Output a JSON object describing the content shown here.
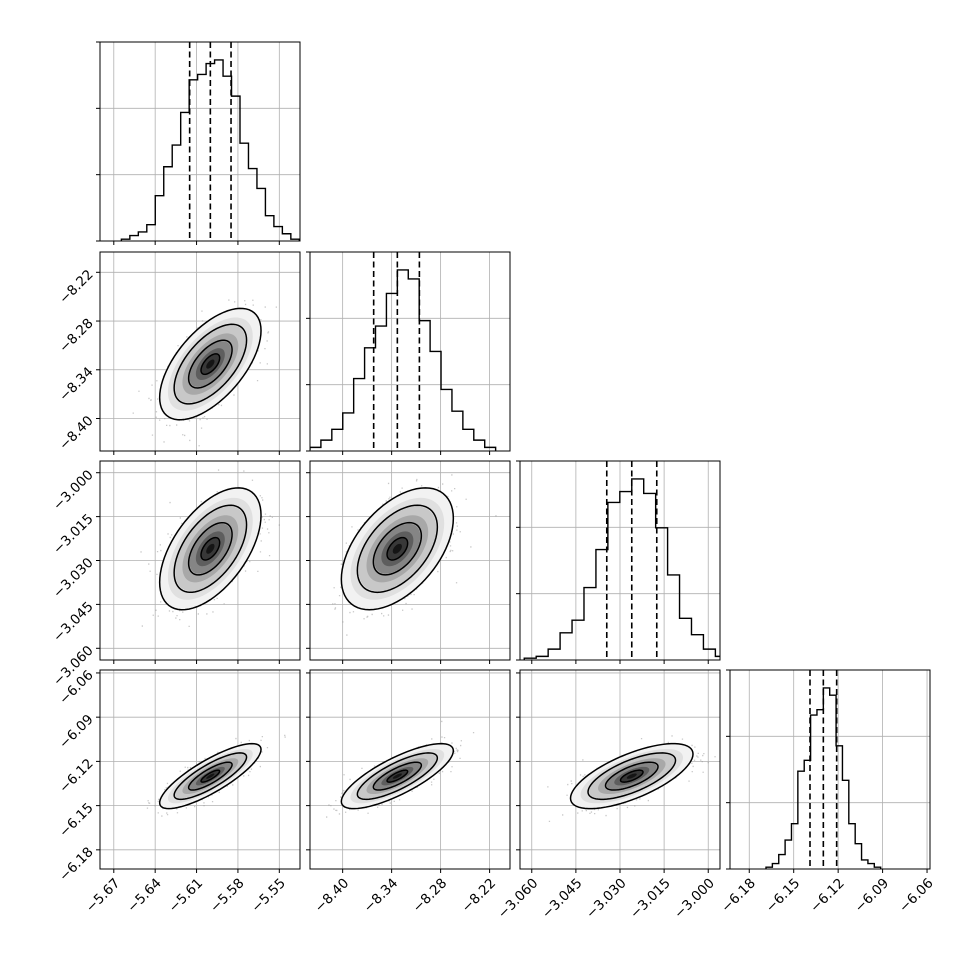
{
  "chart_data": {
    "type": "corner",
    "title": "",
    "grid": true,
    "quantiles_note": "dashed lines mark 16th / 50th / 84th percentiles",
    "parameters": [
      {
        "index": 0,
        "median": -5.6,
        "q16": -5.615,
        "q84": -5.585,
        "sigma": 0.015,
        "range": [
          -5.68,
          -5.535
        ],
        "ticks": [
          -5.67,
          -5.64,
          -5.61,
          -5.58,
          -5.55
        ],
        "tick_labels": [
          "−5.67",
          "−5.64",
          "−5.61",
          "−5.58",
          "−5.55"
        ],
        "histogram": [
          0.01,
          0.03,
          0.05,
          0.09,
          0.25,
          0.41,
          0.53,
          0.71,
          0.89,
          0.92,
          0.98,
          1.0,
          0.91,
          0.8,
          0.54,
          0.4,
          0.29,
          0.14,
          0.08,
          0.04,
          0.01
        ]
      },
      {
        "index": 1,
        "median": -8.333,
        "q16": -8.362,
        "q84": -8.306,
        "sigma": 0.028,
        "range": [
          -8.44,
          -8.195
        ],
        "ticks": [
          -8.4,
          -8.34,
          -8.28,
          -8.22
        ],
        "tick_labels": [
          "−8.40",
          "−8.34",
          "−8.28",
          "−8.22"
        ],
        "histogram": [
          0.01,
          0.02,
          0.06,
          0.12,
          0.21,
          0.4,
          0.57,
          0.69,
          0.87,
          1.0,
          0.95,
          0.72,
          0.55,
          0.34,
          0.22,
          0.12,
          0.06,
          0.02
        ]
      },
      {
        "index": 2,
        "median": -3.026,
        "q16": -3.0345,
        "q84": -3.0175,
        "sigma": 0.0085,
        "range": [
          -3.064,
          -2.996
        ],
        "ticks": [
          -3.06,
          -3.045,
          -3.03,
          -3.015,
          -3.0
        ],
        "tick_labels": [
          "−3.060",
          "−3.045",
          "−3.030",
          "−3.015",
          "−3.000"
        ],
        "histogram": [
          0.01,
          0.02,
          0.06,
          0.15,
          0.22,
          0.4,
          0.61,
          0.87,
          0.93,
          1.0,
          0.92,
          0.73,
          0.47,
          0.23,
          0.14,
          0.06,
          0.02,
          0.01
        ]
      },
      {
        "index": 3,
        "median": -6.13,
        "q16": -6.139,
        "q84": -6.121,
        "sigma": 0.009,
        "range": [
          -6.193,
          -6.058
        ],
        "ticks": [
          -6.18,
          -6.15,
          -6.12,
          -6.09,
          -6.06
        ],
        "tick_labels": [
          "−6.18",
          "−6.15",
          "−6.12",
          "−6.09",
          "−6.06"
        ],
        "histogram": [
          0.01,
          0.03,
          0.08,
          0.16,
          0.25,
          0.54,
          0.6,
          0.85,
          0.88,
          1.0,
          0.96,
          0.68,
          0.49,
          0.25,
          0.14,
          0.05,
          0.03,
          0.01
        ]
      }
    ],
    "correlations": {
      "1-0": 0.6,
      "2-0": 0.55,
      "2-1": 0.5,
      "3-0": 0.82,
      "3-1": 0.78,
      "3-2": 0.68
    }
  }
}
